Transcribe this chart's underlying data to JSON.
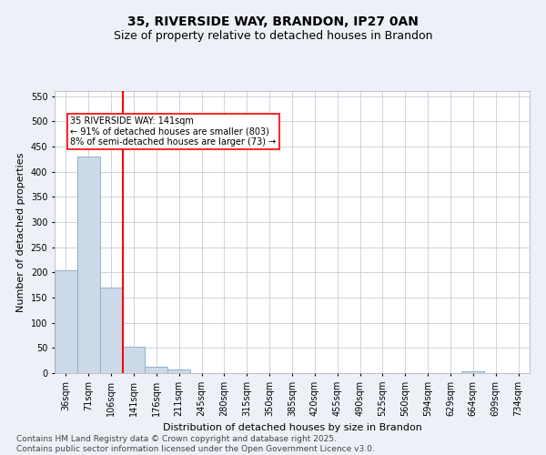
{
  "title_line1": "35, RIVERSIDE WAY, BRANDON, IP27 0AN",
  "title_line2": "Size of property relative to detached houses in Brandon",
  "xlabel": "Distribution of detached houses by size in Brandon",
  "ylabel": "Number of detached properties",
  "categories": [
    "36sqm",
    "71sqm",
    "106sqm",
    "141sqm",
    "176sqm",
    "211sqm",
    "245sqm",
    "280sqm",
    "315sqm",
    "350sqm",
    "385sqm",
    "420sqm",
    "455sqm",
    "490sqm",
    "525sqm",
    "560sqm",
    "594sqm",
    "629sqm",
    "664sqm",
    "699sqm",
    "734sqm"
  ],
  "values": [
    205,
    430,
    170,
    53,
    13,
    8,
    0,
    0,
    0,
    0,
    0,
    0,
    0,
    0,
    0,
    0,
    0,
    0,
    4,
    0,
    0
  ],
  "bar_color": "#ccd9e8",
  "bar_edge_color": "#7faac8",
  "ylim": [
    0,
    560
  ],
  "yticks": [
    0,
    50,
    100,
    150,
    200,
    250,
    300,
    350,
    400,
    450,
    500,
    550
  ],
  "red_line_x": 2.5,
  "annotation_text": "35 RIVERSIDE WAY: 141sqm\n← 91% of detached houses are smaller (803)\n8% of semi-detached houses are larger (73) →",
  "footer_line1": "Contains HM Land Registry data © Crown copyright and database right 2025.",
  "footer_line2": "Contains public sector information licensed under the Open Government Licence v3.0.",
  "background_color": "#edf1f7",
  "plot_bg_color": "#ffffff",
  "grid_color": "#c5cdd8",
  "title_fontsize": 10,
  "subtitle_fontsize": 9,
  "tick_fontsize": 7,
  "ylabel_fontsize": 8,
  "xlabel_fontsize": 8,
  "footer_fontsize": 6.5,
  "annot_fontsize": 7
}
